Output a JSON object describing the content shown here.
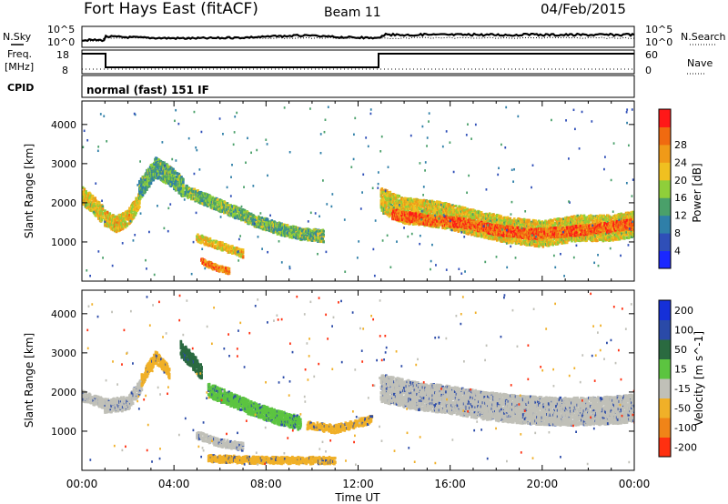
{
  "header": {
    "title": "Fort Hays East (fitACF)",
    "beam": "Beam 11",
    "date": "04/Feb/2015"
  },
  "top_panels": {
    "nsky_label": "N.Sky",
    "nsky_ticks": [
      "10^5",
      "10^0"
    ],
    "nsearch_label": "N.Search",
    "nsearch_ticks": [
      "10^5",
      "10^0"
    ],
    "freq_label": [
      "Freq.",
      "[MHz]"
    ],
    "freq_ticks": [
      "18",
      "8"
    ],
    "nave_label": "Nave",
    "nave_ticks": [
      "60",
      "0"
    ],
    "cpid_label": "CPID",
    "cpid_text": "normal (fast) 151 IF"
  },
  "chart_data": [
    {
      "type": "heatmap",
      "title": "",
      "ylabel": "Slant Range [km]",
      "xlabel": "",
      "ylim": [
        0,
        4600
      ],
      "y_ticks": [
        1000,
        2000,
        3000,
        4000
      ],
      "colorbar": {
        "label": "Power [dB]",
        "ticks": [
          "4",
          "8",
          "12",
          "16",
          "20",
          "24",
          "28"
        ],
        "colors": [
          "#1a28ff",
          "#2f4fb8",
          "#2f7fa8",
          "#4aa06a",
          "#8fcf3a",
          "#f0c020",
          "#f09a18",
          "#f06a10",
          "#ff1818"
        ]
      },
      "series": [
        {
          "segments": [
            {
              "t": [
                0.0,
                0.3,
                0.6,
                0.9
              ],
              "r": [
                2200,
                2050,
                1900,
                1700
              ],
              "w": 450,
              "lvl": 0.55
            },
            {
              "t": [
                1.0,
                1.5,
                2.0,
                2.5
              ],
              "r": [
                1600,
                1450,
                1600,
                2050
              ],
              "w": 400,
              "lvl": 0.6
            },
            {
              "t": [
                2.5,
                3.2,
                3.8,
                4.4
              ],
              "r": [
                2300,
                2900,
                2700,
                2400
              ],
              "w": 500,
              "lvl": 0.3
            },
            {
              "t": [
                4.5,
                5.5,
                6.5,
                7.5,
                8.5,
                9.5,
                10.5
              ],
              "r": [
                2300,
                2050,
                1800,
                1550,
                1350,
                1200,
                1150
              ],
              "w": 300,
              "lvl": 0.35
            },
            {
              "t": [
                5.0,
                6.0,
                7.0
              ],
              "r": [
                1100,
                900,
                700
              ],
              "w": 200,
              "lvl": 0.6
            },
            {
              "t": [
                5.2,
                5.8,
                6.4
              ],
              "r": [
                500,
                350,
                250
              ],
              "w": 150,
              "lvl": 0.8
            },
            {
              "t": [
                13.0,
                14.0,
                15.5,
                17.0,
                18.5,
                20.0,
                21.5,
                23.0,
                24.0
              ],
              "r": [
                2050,
                1800,
                1700,
                1500,
                1300,
                1200,
                1350,
                1350,
                1450
              ],
              "w": 650,
              "lvl": 0.55
            },
            {
              "t": [
                13.5,
                15.0,
                16.5,
                18.0,
                19.5,
                21.0,
                22.5,
                24.0
              ],
              "r": [
                1700,
                1550,
                1500,
                1300,
                1200,
                1250,
                1350,
                1450
              ],
              "w": 250,
              "lvl": 0.85
            }
          ]
        }
      ]
    },
    {
      "type": "heatmap",
      "title": "",
      "ylabel": "Slant Range [km]",
      "xlabel": "Time UT",
      "ylim": [
        0,
        4600
      ],
      "y_ticks": [
        1000,
        2000,
        3000,
        4000
      ],
      "x_ticks": [
        "00:00",
        "04:00",
        "08:00",
        "12:00",
        "16:00",
        "20:00",
        "00:00"
      ],
      "colorbar": {
        "label": "Velocity [m s^-1]",
        "ticks": [
          "200",
          "100",
          "50",
          "15",
          "-15",
          "-50",
          "-100",
          "-200"
        ],
        "colors": [
          "#1530d8",
          "#2a4aa8",
          "#2a6a40",
          "#5cc440",
          "#c0c0b8",
          "#f0b028",
          "#f08418",
          "#ff3010"
        ]
      },
      "series": [
        {
          "segments": [
            {
              "t": [
                0.0,
                0.5,
                1.0
              ],
              "r": [
                1900,
                1800,
                1700
              ],
              "w": 250,
              "lvl": "#c0c0b8"
            },
            {
              "t": [
                1.0,
                2.0,
                2.6
              ],
              "r": [
                1650,
                1700,
                2200
              ],
              "w": 350,
              "lvl": "#c0c0b8"
            },
            {
              "t": [
                2.6,
                3.2,
                3.8
              ],
              "r": [
                2300,
                2900,
                2500
              ],
              "w": 300,
              "lvl": "#f0b028"
            },
            {
              "t": [
                4.3,
                4.8,
                5.2
              ],
              "r": [
                3100,
                2800,
                2500
              ],
              "w": 400,
              "lvl": "#2a6a40"
            },
            {
              "t": [
                5.5,
                6.5,
                7.5,
                8.5,
                9.5
              ],
              "r": [
                2050,
                1800,
                1550,
                1350,
                1200
              ],
              "w": 350,
              "lvl": "#5cc440"
            },
            {
              "t": [
                9.8,
                11.0,
                12.0,
                12.6
              ],
              "r": [
                1150,
                1050,
                1200,
                1300
              ],
              "w": 200,
              "lvl": "#f0b028"
            },
            {
              "t": [
                5.0,
                6.0,
                7.0
              ],
              "r": [
                900,
                700,
                600
              ],
              "w": 200,
              "lvl": "#c0c0b8"
            },
            {
              "t": [
                5.5,
                8.0,
                11.0
              ],
              "r": [
                300,
                250,
                250
              ],
              "w": 180,
              "lvl": "#f0b028"
            },
            {
              "t": [
                13.0,
                14.5,
                16.0,
                17.5,
                19.0,
                20.5,
                22.0,
                23.5,
                24.0
              ],
              "r": [
                2100,
                1900,
                1800,
                1650,
                1550,
                1500,
                1500,
                1550,
                1600
              ],
              "w": 700,
              "lvl": "#c0c0b8"
            }
          ]
        }
      ]
    }
  ]
}
